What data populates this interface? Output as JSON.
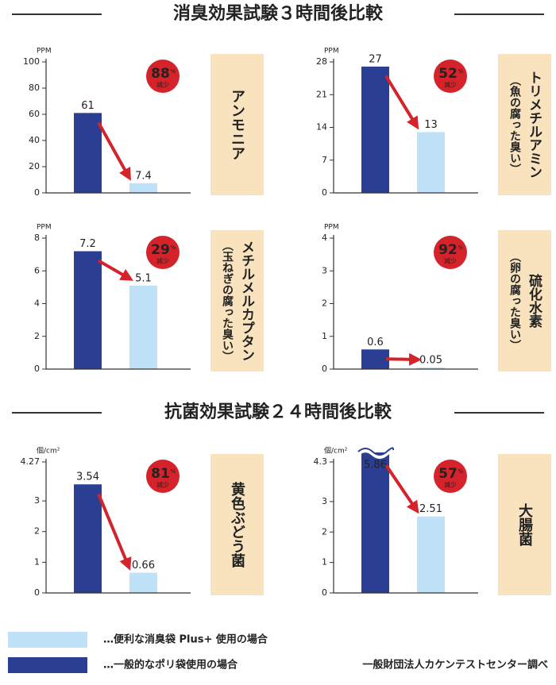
{
  "sections": [
    {
      "title": "消臭効果試験３時間後比較"
    },
    {
      "title": "抗菌効果試験２４時間後比較"
    }
  ],
  "chart_data": [
    {
      "type": "bar",
      "title": "アンモニア",
      "y_unit": "PPM",
      "categories": [
        null,
        null
      ],
      "values": [
        61,
        7.4
      ],
      "colors": [
        "#2a3e93",
        "#bfe2f8"
      ],
      "ylim": [
        0,
        100
      ],
      "yticks": [
        0,
        20,
        40,
        60,
        80,
        100
      ],
      "reduction": 88,
      "reduction_unit": "%",
      "reduction_label": "減少"
    },
    {
      "type": "bar",
      "title": "トリメチルアミン",
      "subtitle": "（魚の腐った臭い）",
      "y_unit": "PPM",
      "categories": [
        null,
        null
      ],
      "values": [
        27,
        13
      ],
      "colors": [
        "#2a3e93",
        "#bfe2f8"
      ],
      "ylim": [
        0,
        28
      ],
      "yticks": [
        0,
        7,
        14,
        21,
        28
      ],
      "reduction": 52,
      "reduction_unit": "%",
      "reduction_label": "減少"
    },
    {
      "type": "bar",
      "title": "メチルメルカプタン",
      "subtitle": "（玉ねぎの腐った臭い）",
      "y_unit": "PPM",
      "categories": [
        null,
        null
      ],
      "values": [
        7.2,
        5.1
      ],
      "colors": [
        "#2a3e93",
        "#bfe2f8"
      ],
      "ylim": [
        0,
        8
      ],
      "yticks": [
        0,
        2,
        4,
        6,
        8
      ],
      "reduction": 29,
      "reduction_unit": "%",
      "reduction_label": "減少"
    },
    {
      "type": "bar",
      "title": "硫化水素",
      "subtitle": "（卵の腐った臭い）",
      "y_unit": "PPM",
      "categories": [
        null,
        null
      ],
      "values": [
        0.6,
        0.05
      ],
      "colors": [
        "#2a3e93",
        "#bfe2f8"
      ],
      "ylim": [
        0,
        4
      ],
      "yticks": [
        0,
        1,
        2,
        3,
        4
      ],
      "reduction": 92,
      "reduction_unit": "%",
      "reduction_label": "減少"
    },
    {
      "type": "bar",
      "title": "黄色ぶどう菌",
      "y_unit": "個/cm²",
      "categories": [
        null,
        null
      ],
      "values": [
        3.54,
        0.66
      ],
      "colors": [
        "#2a3e93",
        "#bfe2f8"
      ],
      "ylim": [
        0,
        4.27
      ],
      "yticks": [
        0,
        1,
        2,
        3,
        4.27
      ],
      "reduction": 81,
      "reduction_unit": "%",
      "reduction_label": "減少"
    },
    {
      "type": "bar",
      "title": "大腸菌",
      "y_unit": "個/cm²",
      "categories": [
        null,
        null
      ],
      "values": [
        5.86,
        2.51
      ],
      "colors": [
        "#2a3e93",
        "#bfe2f8"
      ],
      "ylim": [
        0,
        4.3
      ],
      "yticks": [
        0,
        1,
        2,
        3,
        4.3
      ],
      "axis_break": true,
      "reduction": 57,
      "reduction_unit": "%",
      "reduction_label": "減少"
    }
  ],
  "legend": [
    {
      "name": "…便利な消臭袋 Plus+ 使用の場合",
      "color": "#bfe2f8"
    },
    {
      "name": "…一般的なポリ袋使用の場合",
      "color": "#2a3e93"
    }
  ],
  "source": "一般財団法人カケンテストセンター調べ"
}
